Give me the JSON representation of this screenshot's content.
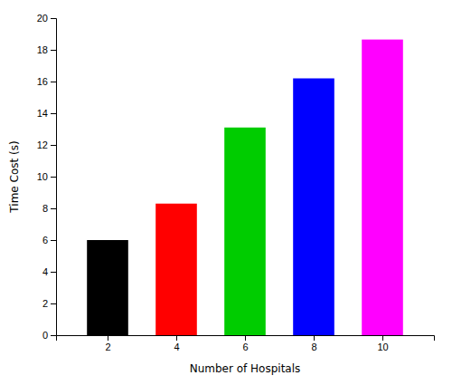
{
  "chart_data": {
    "type": "bar",
    "x": [
      2,
      4,
      6,
      8,
      10
    ],
    "values": [
      6.0,
      8.3,
      13.1,
      16.2,
      18.65
    ],
    "colors": [
      "#000000",
      "#ff0000",
      "#00cc00",
      "#0000ff",
      "#ff00ff"
    ],
    "xlabel": "Number of Hospitals",
    "ylabel": "Time Cost (s)",
    "xlim": [
      0.5,
      11.5
    ],
    "ylim": [
      0,
      20
    ],
    "xticks": [
      2,
      4,
      6,
      8,
      10
    ],
    "yticks": [
      0,
      2,
      4,
      6,
      8,
      10,
      12,
      14,
      16,
      18,
      20
    ],
    "grid": false
  }
}
